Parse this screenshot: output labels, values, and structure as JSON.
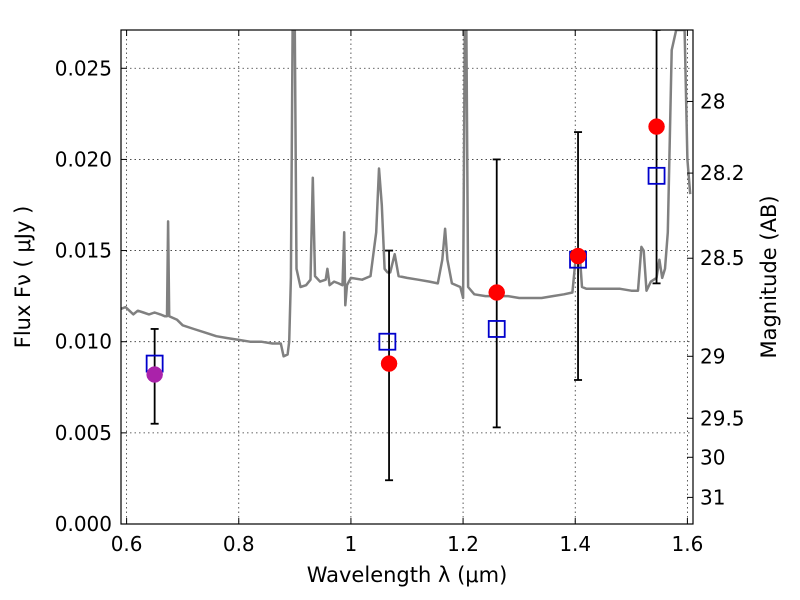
{
  "chart_data": {
    "type": "scatter",
    "xlabel": "Wavelength  λ (μm)",
    "ylabel": "Flux  Fν  ( μJy )",
    "y2label": "Magnitude (AB)",
    "xlim": [
      0.59,
      1.61
    ],
    "ylim": [
      0.0,
      0.0271
    ],
    "x_ticks": [
      {
        "value": 0.6,
        "label": "0.6"
      },
      {
        "value": 0.8,
        "label": "0.8"
      },
      {
        "value": 1.0,
        "label": "1"
      },
      {
        "value": 1.2,
        "label": "1.2"
      },
      {
        "value": 1.4,
        "label": "1.4"
      },
      {
        "value": 1.6,
        "label": "1.6"
      }
    ],
    "y_ticks": [
      {
        "value": 0.0,
        "label": "0.000"
      },
      {
        "value": 0.005,
        "label": "0.005"
      },
      {
        "value": 0.01,
        "label": "0.010"
      },
      {
        "value": 0.015,
        "label": "0.015"
      },
      {
        "value": 0.02,
        "label": "0.020"
      },
      {
        "value": 0.025,
        "label": "0.025"
      }
    ],
    "y2_ticks": [
      {
        "flux": 0.02318,
        "label": "28"
      },
      {
        "flux": 0.01925,
        "label": "28.2"
      },
      {
        "flux": 0.01458,
        "label": "28.5"
      },
      {
        "flux": 0.0092,
        "label": "29"
      },
      {
        "flux": 0.0058,
        "label": "29.5"
      },
      {
        "flux": 0.00366,
        "label": "30"
      },
      {
        "flux": 0.00146,
        "label": "31"
      }
    ],
    "grid": true,
    "series": [
      {
        "type": "line",
        "color": "#808080",
        "points": [
          [
            0.59,
            0.0118
          ],
          [
            0.598,
            0.0119
          ],
          [
            0.605,
            0.0117
          ],
          [
            0.612,
            0.0115
          ],
          [
            0.62,
            0.0117
          ],
          [
            0.63,
            0.0116
          ],
          [
            0.64,
            0.0115
          ],
          [
            0.65,
            0.0116
          ],
          [
            0.66,
            0.0115
          ],
          [
            0.668,
            0.0114
          ],
          [
            0.672,
            0.0114
          ],
          [
            0.674,
            0.0166
          ],
          [
            0.676,
            0.0114
          ],
          [
            0.69,
            0.0112
          ],
          [
            0.7,
            0.0109
          ],
          [
            0.72,
            0.0107
          ],
          [
            0.74,
            0.0105
          ],
          [
            0.76,
            0.0103
          ],
          [
            0.78,
            0.0102
          ],
          [
            0.8,
            0.0101
          ],
          [
            0.82,
            0.01
          ],
          [
            0.84,
            0.01
          ],
          [
            0.86,
            0.0099
          ],
          [
            0.875,
            0.0099
          ],
          [
            0.88,
            0.0092
          ],
          [
            0.887,
            0.0093
          ],
          [
            0.89,
            0.01
          ],
          [
            0.893,
            0.0135
          ],
          [
            0.896,
            0.0271
          ],
          [
            0.9,
            0.0271
          ],
          [
            0.903,
            0.014
          ],
          [
            0.91,
            0.013
          ],
          [
            0.92,
            0.0131
          ],
          [
            0.928,
            0.0134
          ],
          [
            0.932,
            0.019
          ],
          [
            0.936,
            0.0136
          ],
          [
            0.945,
            0.0133
          ],
          [
            0.955,
            0.0134
          ],
          [
            0.958,
            0.014
          ],
          [
            0.962,
            0.0131
          ],
          [
            0.97,
            0.0133
          ],
          [
            0.978,
            0.0132
          ],
          [
            0.985,
            0.0131
          ],
          [
            0.988,
            0.016
          ],
          [
            0.99,
            0.012
          ],
          [
            0.993,
            0.0131
          ],
          [
            1.0,
            0.0135
          ],
          [
            1.02,
            0.0134
          ],
          [
            1.035,
            0.0136
          ],
          [
            1.045,
            0.016
          ],
          [
            1.05,
            0.0195
          ],
          [
            1.055,
            0.0175
          ],
          [
            1.06,
            0.014
          ],
          [
            1.065,
            0.0138
          ],
          [
            1.07,
            0.0138
          ],
          [
            1.078,
            0.0148
          ],
          [
            1.085,
            0.0136
          ],
          [
            1.1,
            0.0135
          ],
          [
            1.12,
            0.0134
          ],
          [
            1.14,
            0.0133
          ],
          [
            1.155,
            0.0132
          ],
          [
            1.163,
            0.0145
          ],
          [
            1.168,
            0.0162
          ],
          [
            1.172,
            0.0145
          ],
          [
            1.18,
            0.0132
          ],
          [
            1.195,
            0.013
          ],
          [
            1.2,
            0.0124
          ],
          [
            1.203,
            0.0271
          ],
          [
            1.206,
            0.0271
          ],
          [
            1.209,
            0.013
          ],
          [
            1.22,
            0.0126
          ],
          [
            1.24,
            0.0125
          ],
          [
            1.26,
            0.0125
          ],
          [
            1.28,
            0.0125
          ],
          [
            1.3,
            0.0124
          ],
          [
            1.32,
            0.0124
          ],
          [
            1.34,
            0.0124
          ],
          [
            1.36,
            0.0125
          ],
          [
            1.38,
            0.0126
          ],
          [
            1.395,
            0.0127
          ],
          [
            1.402,
            0.015
          ],
          [
            1.405,
            0.015
          ],
          [
            1.408,
            0.0148
          ],
          [
            1.412,
            0.013
          ],
          [
            1.42,
            0.0129
          ],
          [
            1.44,
            0.0129
          ],
          [
            1.46,
            0.0129
          ],
          [
            1.48,
            0.0129
          ],
          [
            1.5,
            0.0128
          ],
          [
            1.512,
            0.0128
          ],
          [
            1.518,
            0.0152
          ],
          [
            1.522,
            0.015
          ],
          [
            1.527,
            0.0128
          ],
          [
            1.535,
            0.0133
          ],
          [
            1.545,
            0.0135
          ],
          [
            1.55,
            0.0145
          ],
          [
            1.555,
            0.0135
          ],
          [
            1.56,
            0.014
          ],
          [
            1.565,
            0.016
          ],
          [
            1.572,
            0.026
          ],
          [
            1.58,
            0.0271
          ],
          [
            1.595,
            0.0271
          ],
          [
            1.6,
            0.02
          ],
          [
            1.605,
            0.0181
          ]
        ]
      },
      {
        "type": "errorbar",
        "color": "#000000",
        "points": [
          {
            "x": 0.65,
            "y": 0.0082,
            "ylow": 0.0055,
            "yhigh": 0.0107
          },
          {
            "x": 1.068,
            "y": 0.0088,
            "ylow": 0.0024,
            "yhigh": 0.015
          },
          {
            "x": 1.26,
            "y": 0.0127,
            "ylow": 0.0053,
            "yhigh": 0.02
          },
          {
            "x": 1.405,
            "y": 0.0147,
            "ylow": 0.0079,
            "yhigh": 0.0215
          },
          {
            "x": 1.545,
            "y": 0.0218,
            "ylow": 0.0132,
            "yhigh": 0.0271
          }
        ]
      },
      {
        "type": "scatter",
        "marker": "square",
        "color": "#0000cc",
        "points": [
          [
            0.65,
            0.0088
          ],
          [
            1.065,
            0.01
          ],
          [
            1.26,
            0.0107
          ],
          [
            1.405,
            0.0145
          ],
          [
            1.545,
            0.0191
          ]
        ]
      },
      {
        "type": "scatter",
        "marker": "circle",
        "color": "#ff0000",
        "points": [
          [
            1.068,
            0.0088
          ],
          [
            1.26,
            0.0127
          ],
          [
            1.405,
            0.0147
          ],
          [
            1.545,
            0.0218
          ]
        ]
      },
      {
        "type": "scatter",
        "marker": "circle",
        "color": "#aa22aa",
        "points": [
          [
            0.65,
            0.0082
          ]
        ]
      }
    ]
  }
}
